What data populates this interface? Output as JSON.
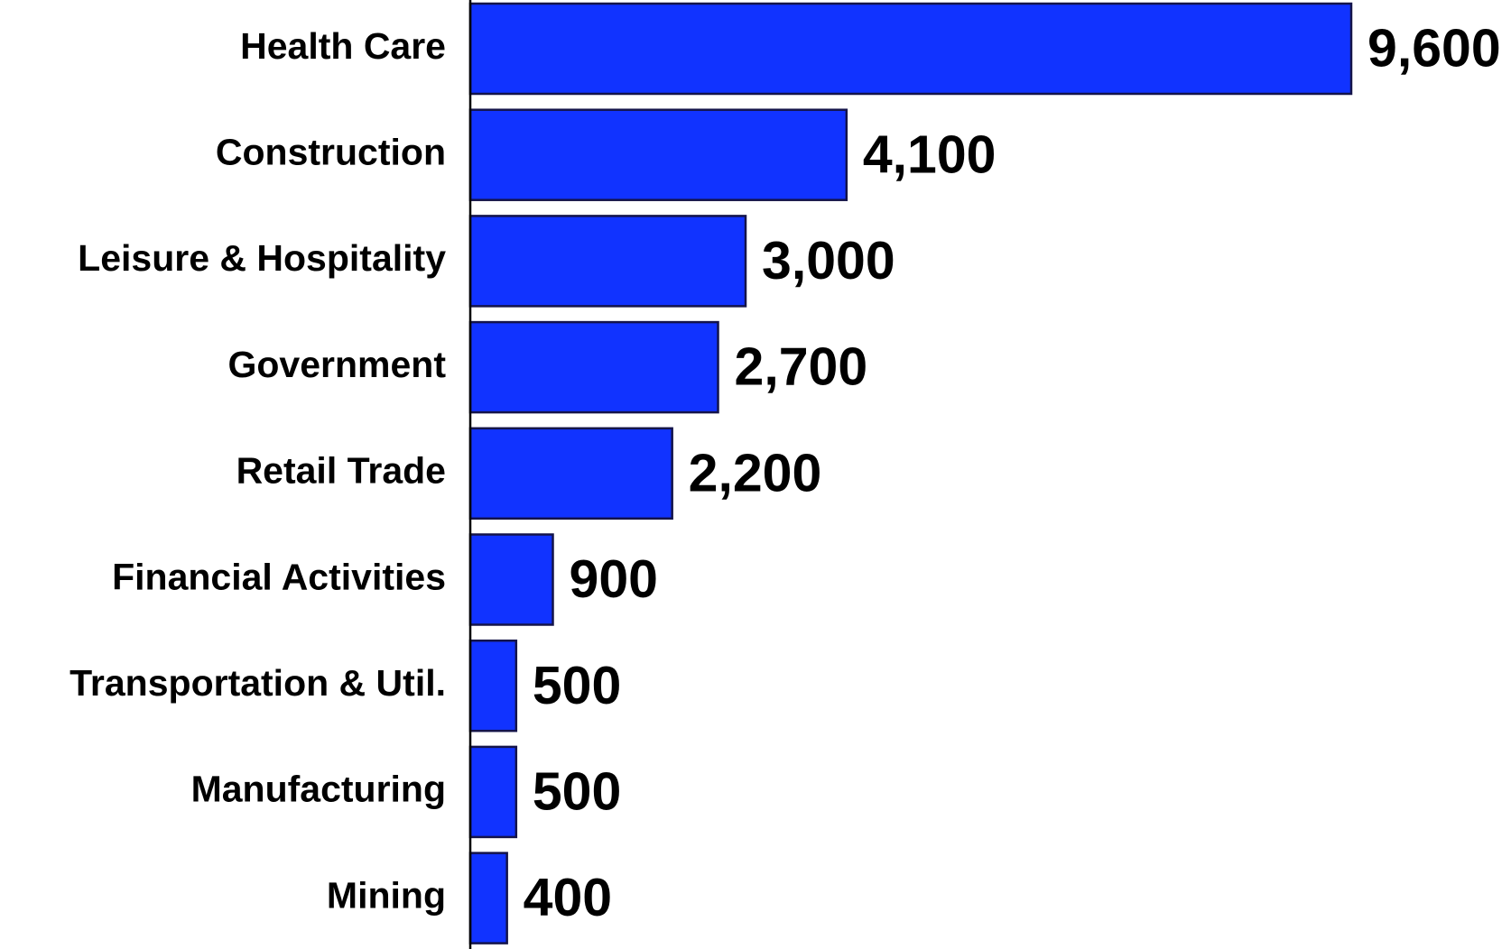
{
  "chart_data": {
    "type": "bar",
    "orientation": "horizontal",
    "categories": [
      "Health Care",
      "Construction",
      "Leisure & Hospitality",
      "Government",
      "Retail Trade",
      "Financial Activities",
      "Transportation & Util.",
      "Manufacturing",
      "Mining"
    ],
    "values": [
      9600,
      4100,
      3000,
      2700,
      2200,
      900,
      500,
      500,
      400
    ],
    "value_labels": [
      "9,600",
      "4,100",
      "3,000",
      "2,700",
      "2,200",
      "900",
      "500",
      "500",
      "400"
    ],
    "color": "#1133ff"
  }
}
